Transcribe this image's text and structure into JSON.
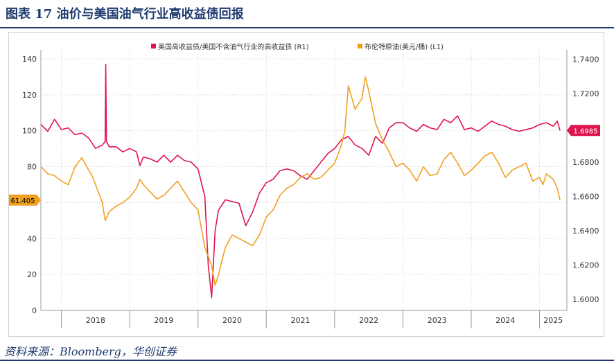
{
  "figure": {
    "title": "图表 17    油价与美国油气行业高收益债回报",
    "source": "资料来源：Bloomberg，华创证券"
  },
  "chart_data": {
    "type": "line",
    "legend_position": "top-center",
    "grid": true,
    "x_tick_labels": [
      "2018",
      "2019",
      "2020",
      "2021",
      "2022",
      "2023",
      "2024",
      "2025"
    ],
    "x_range": [
      2017.7,
      2025.4
    ],
    "y_left": {
      "range": [
        0,
        145
      ],
      "ticks": [
        0,
        20,
        40,
        60,
        80,
        100,
        120,
        140
      ]
    },
    "y_right": {
      "range": [
        1.5935,
        1.7455
      ],
      "ticks": [
        1.6,
        1.62,
        1.64,
        1.66,
        1.68,
        1.7,
        1.72,
        1.74
      ],
      "tick_labels": [
        "1.6000",
        "1.6200",
        "1.6400",
        "1.6600",
        "1.6800",
        "1.7000",
        "1.7200",
        "1.7400"
      ]
    },
    "series": [
      {
        "name": "美国高收益债/美国不含油气行业的高收益债 (R1)",
        "axis": "right",
        "color": "#e0144c",
        "last_value_label": "1.6985",
        "x": [
          2017.7,
          2017.8,
          2017.9,
          2018.0,
          2018.1,
          2018.2,
          2018.3,
          2018.4,
          2018.5,
          2018.6,
          2018.64,
          2018.65,
          2018.66,
          2018.7,
          2018.8,
          2018.9,
          2019.0,
          2019.1,
          2019.15,
          2019.2,
          2019.3,
          2019.4,
          2019.5,
          2019.6,
          2019.7,
          2019.8,
          2019.9,
          2020.0,
          2020.1,
          2020.15,
          2020.2,
          2020.25,
          2020.3,
          2020.4,
          2020.5,
          2020.6,
          2020.7,
          2020.8,
          2020.9,
          2021.0,
          2021.1,
          2021.2,
          2021.3,
          2021.4,
          2021.5,
          2021.6,
          2021.7,
          2021.8,
          2021.9,
          2022.0,
          2022.1,
          2022.2,
          2022.3,
          2022.4,
          2022.5,
          2022.6,
          2022.7,
          2022.8,
          2022.9,
          2023.0,
          2023.1,
          2023.2,
          2023.3,
          2023.4,
          2023.5,
          2023.6,
          2023.7,
          2023.8,
          2023.9,
          2024.0,
          2024.1,
          2024.2,
          2024.3,
          2024.4,
          2024.5,
          2024.6,
          2024.7,
          2024.8,
          2024.9,
          2025.0,
          2025.1,
          2025.2,
          2025.26,
          2025.3
        ],
        "y": [
          1.702,
          1.698,
          1.705,
          1.699,
          1.7,
          1.696,
          1.697,
          1.694,
          1.688,
          1.69,
          1.692,
          1.737,
          1.692,
          1.689,
          1.689,
          1.686,
          1.688,
          1.686,
          1.678,
          1.683,
          1.682,
          1.68,
          1.684,
          1.68,
          1.684,
          1.681,
          1.68,
          1.676,
          1.66,
          1.62,
          1.601,
          1.64,
          1.652,
          1.658,
          1.657,
          1.656,
          1.643,
          1.651,
          1.662,
          1.668,
          1.67,
          1.675,
          1.676,
          1.675,
          1.672,
          1.67,
          1.675,
          1.68,
          1.685,
          1.688,
          1.693,
          1.695,
          1.69,
          1.688,
          1.684,
          1.695,
          1.691,
          1.7,
          1.703,
          1.703,
          1.7,
          1.698,
          1.702,
          1.7,
          1.699,
          1.705,
          1.703,
          1.707,
          1.699,
          1.7,
          1.698,
          1.701,
          1.704,
          1.702,
          1.701,
          1.699,
          1.698,
          1.699,
          1.7,
          1.702,
          1.703,
          1.701,
          1.704,
          1.6985
        ]
      },
      {
        "name": "布伦特原油(美元/桶) (L1)",
        "axis": "left",
        "color": "#f0a020",
        "last_value_label": "61.405",
        "x": [
          2017.7,
          2017.8,
          2017.9,
          2018.0,
          2018.1,
          2018.2,
          2018.3,
          2018.4,
          2018.45,
          2018.5,
          2018.6,
          2018.64,
          2018.7,
          2018.8,
          2018.9,
          2019.0,
          2019.1,
          2019.15,
          2019.2,
          2019.3,
          2019.4,
          2019.5,
          2019.6,
          2019.7,
          2019.8,
          2019.9,
          2020.0,
          2020.1,
          2020.15,
          2020.2,
          2020.25,
          2020.3,
          2020.4,
          2020.5,
          2020.6,
          2020.7,
          2020.8,
          2020.9,
          2021.0,
          2021.1,
          2021.2,
          2021.3,
          2021.4,
          2021.5,
          2021.6,
          2021.7,
          2021.8,
          2021.9,
          2022.0,
          2022.1,
          2022.15,
          2022.2,
          2022.3,
          2022.4,
          2022.45,
          2022.5,
          2022.6,
          2022.7,
          2022.8,
          2022.9,
          2023.0,
          2023.1,
          2023.2,
          2023.3,
          2023.4,
          2023.5,
          2023.6,
          2023.7,
          2023.8,
          2023.9,
          2024.0,
          2024.1,
          2024.2,
          2024.3,
          2024.4,
          2024.5,
          2024.6,
          2024.7,
          2024.8,
          2024.9,
          2025.0,
          2025.05,
          2025.1,
          2025.2,
          2025.26,
          2025.3
        ],
        "y": [
          80,
          76,
          75,
          72,
          70,
          80,
          85,
          78,
          75,
          70,
          60,
          50,
          55,
          58,
          60,
          63,
          68,
          73,
          70,
          66,
          62,
          64,
          68,
          72,
          66,
          60,
          56,
          35,
          30,
          25,
          14,
          20,
          35,
          42,
          40,
          38,
          36,
          42,
          52,
          56,
          64,
          68,
          70,
          74,
          76,
          73,
          74,
          78,
          82,
          92,
          100,
          125,
          112,
          118,
          130,
          122,
          104,
          95,
          88,
          80,
          82,
          78,
          72,
          80,
          75,
          76,
          84,
          88,
          82,
          75,
          78,
          82,
          86,
          88,
          82,
          74,
          78,
          80,
          82,
          72,
          74,
          70,
          76,
          73,
          68,
          61.405
        ]
      }
    ]
  }
}
